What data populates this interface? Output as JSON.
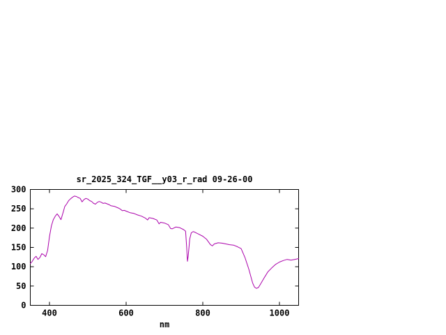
{
  "page": {
    "background": "#ffffff",
    "axis_color": "#000000",
    "text_color": "#000000"
  },
  "chart_data": {
    "type": "line",
    "title": "sr_2025_324_TGF__y03_r_rad 09-26-00",
    "xlabel": "nm",
    "ylabel": "",
    "xlim": [
      350,
      1050
    ],
    "ylim": [
      0,
      300
    ],
    "xticks": [
      400,
      600,
      800,
      1000
    ],
    "yticks": [
      0,
      50,
      100,
      150,
      200,
      250,
      300
    ],
    "grid": false,
    "legend": "none",
    "line_color": "#aa00aa",
    "series": [
      {
        "name": "spectral_radiance",
        "points": [
          [
            350,
            108
          ],
          [
            355,
            114
          ],
          [
            360,
            122
          ],
          [
            365,
            127
          ],
          [
            370,
            119
          ],
          [
            375,
            124
          ],
          [
            380,
            134
          ],
          [
            385,
            131
          ],
          [
            390,
            126
          ],
          [
            395,
            142
          ],
          [
            400,
            178
          ],
          [
            405,
            206
          ],
          [
            410,
            222
          ],
          [
            415,
            231
          ],
          [
            420,
            237
          ],
          [
            425,
            230
          ],
          [
            430,
            222
          ],
          [
            435,
            239
          ],
          [
            440,
            256
          ],
          [
            445,
            263
          ],
          [
            450,
            271
          ],
          [
            455,
            276
          ],
          [
            460,
            280
          ],
          [
            465,
            283
          ],
          [
            470,
            282
          ],
          [
            475,
            279
          ],
          [
            480,
            277
          ],
          [
            485,
            268
          ],
          [
            490,
            274
          ],
          [
            495,
            277
          ],
          [
            500,
            275
          ],
          [
            505,
            271
          ],
          [
            510,
            269
          ],
          [
            515,
            264
          ],
          [
            520,
            262
          ],
          [
            525,
            267
          ],
          [
            530,
            269
          ],
          [
            535,
            267
          ],
          [
            540,
            264
          ],
          [
            545,
            265
          ],
          [
            550,
            263
          ],
          [
            555,
            261
          ],
          [
            560,
            258
          ],
          [
            565,
            257
          ],
          [
            570,
            256
          ],
          [
            575,
            254
          ],
          [
            580,
            252
          ],
          [
            585,
            249
          ],
          [
            590,
            245
          ],
          [
            595,
            246
          ],
          [
            600,
            244
          ],
          [
            610,
            240
          ],
          [
            620,
            238
          ],
          [
            630,
            234
          ],
          [
            640,
            231
          ],
          [
            650,
            226
          ],
          [
            656,
            221
          ],
          [
            660,
            227
          ],
          [
            670,
            225
          ],
          [
            680,
            221
          ],
          [
            686,
            211
          ],
          [
            690,
            215
          ],
          [
            700,
            213
          ],
          [
            710,
            209
          ],
          [
            716,
            199
          ],
          [
            720,
            198
          ],
          [
            730,
            203
          ],
          [
            740,
            201
          ],
          [
            750,
            196
          ],
          [
            755,
            192
          ],
          [
            758,
            150
          ],
          [
            760,
            114
          ],
          [
            762,
            128
          ],
          [
            766,
            172
          ],
          [
            770,
            188
          ],
          [
            775,
            191
          ],
          [
            780,
            189
          ],
          [
            790,
            184
          ],
          [
            800,
            179
          ],
          [
            810,
            171
          ],
          [
            820,
            157
          ],
          [
            825,
            154
          ],
          [
            830,
            159
          ],
          [
            840,
            162
          ],
          [
            850,
            161
          ],
          [
            860,
            159
          ],
          [
            870,
            157
          ],
          [
            880,
            156
          ],
          [
            890,
            152
          ],
          [
            900,
            147
          ],
          [
            910,
            124
          ],
          [
            920,
            94
          ],
          [
            930,
            58
          ],
          [
            935,
            47
          ],
          [
            940,
            44
          ],
          [
            945,
            46
          ],
          [
            950,
            54
          ],
          [
            960,
            71
          ],
          [
            970,
            87
          ],
          [
            980,
            97
          ],
          [
            990,
            106
          ],
          [
            1000,
            112
          ],
          [
            1010,
            116
          ],
          [
            1020,
            119
          ],
          [
            1030,
            117
          ],
          [
            1040,
            119
          ],
          [
            1050,
            121
          ]
        ]
      }
    ]
  }
}
